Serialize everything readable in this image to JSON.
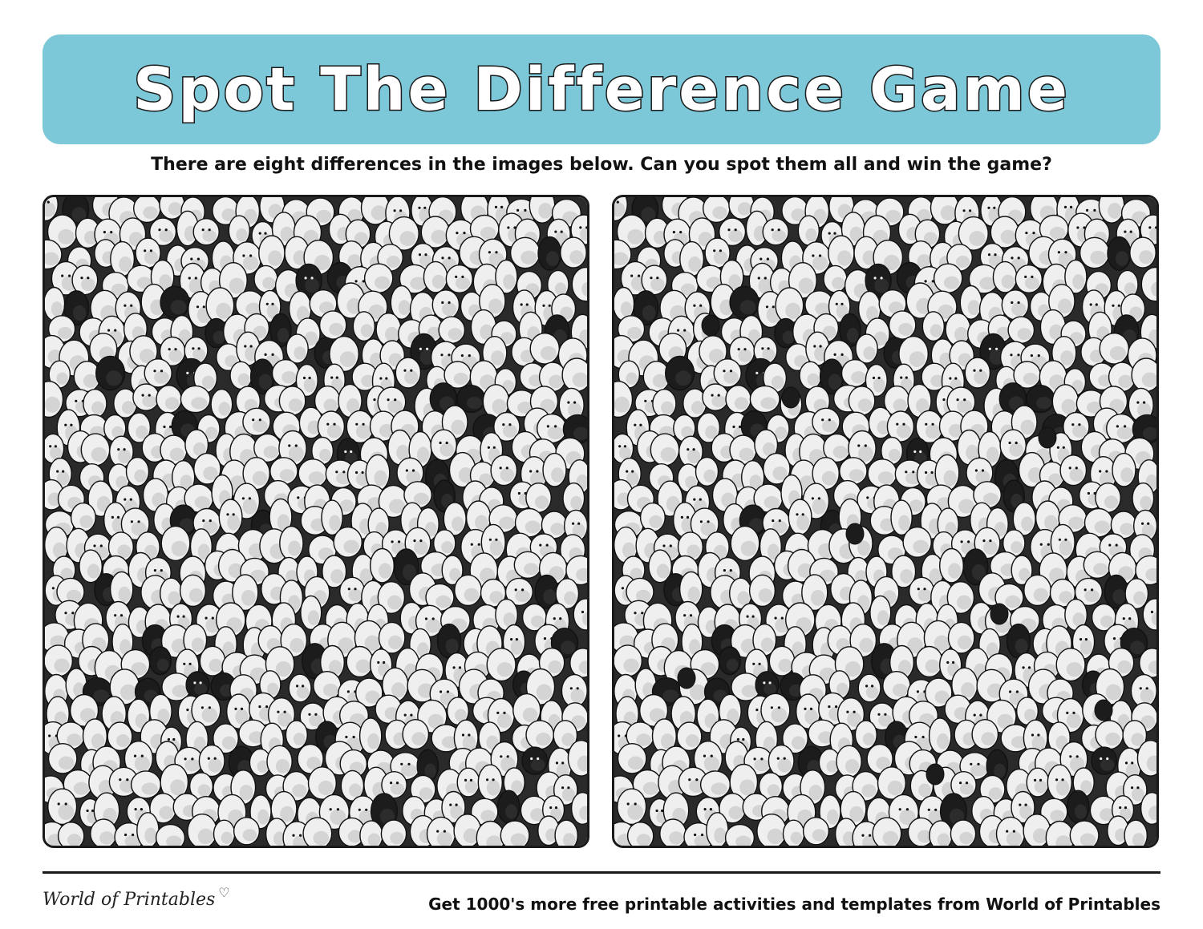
{
  "header": {
    "title": "Spot The Difference Game",
    "banner_color": "#7cc8d8"
  },
  "instructions": "There are eight differences in the images below. Can you spot them all and win the game?",
  "puzzle": {
    "differences": 8,
    "panels": [
      {
        "name": "left-image",
        "icon": "crowd-illustration"
      },
      {
        "name": "right-image",
        "icon": "crowd-illustration"
      }
    ]
  },
  "footer": {
    "logo_text": "World of Printables",
    "logo_icon": "heart-icon",
    "heart_glyph": "♡",
    "promo_text": "Get 1000's more free printable activities and templates from World of Printables"
  }
}
